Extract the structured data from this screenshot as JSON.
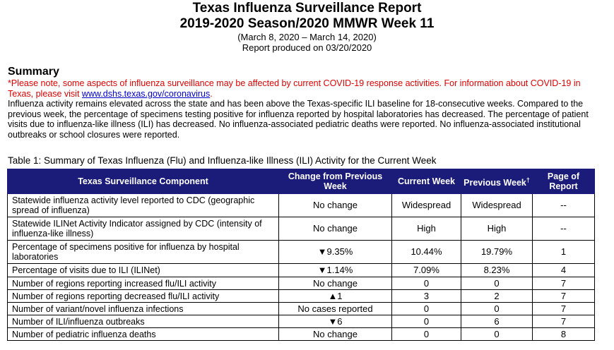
{
  "header": {
    "title_line1": "Texas Influenza Surveillance Report",
    "title_line2": "2019-2020 Season/2020 MMWR Week 11",
    "date_range": "(March 8, 2020 – March 14, 2020)",
    "produced": "Report produced on 03/20/2020"
  },
  "summary": {
    "heading": "Summary",
    "covid_note_before_link": "*Please note, some aspects of influenza surveillance may be affected by current COVID-19 response activities. For information about COVID-19 in Texas, please visit ",
    "covid_link": "www.dshs.texas.gov/coronavirus",
    "covid_note_after_link": ".",
    "body": "Influenza activity remains elevated across the state and has been above the Texas-specific ILI baseline for 18-consecutive weeks. Compared to the previous week, the percentage of specimens testing positive for influenza reported by hospital laboratories has decreased. The percentage of patient visits due to influenza-like illness (ILI) has decreased. No influenza-associated pediatric deaths were reported. No influenza-associated institutional outbreaks or school closures were reported."
  },
  "table": {
    "caption": "Table 1: Summary of Texas Influenza (Flu) and Influenza-like Illness (ILI) Activity for the Current Week",
    "headers": {
      "component": "Texas Surveillance Component",
      "change": "Change from Previous Week",
      "current": "Current Week",
      "previous": "Previous Week",
      "previous_sup": "†",
      "page": "Page of Report"
    },
    "rows": [
      {
        "component": "Statewide influenza activity level reported to CDC (geographic spread of influenza)",
        "change": "No change",
        "current": "Widespread",
        "previous": "Widespread",
        "page": "--"
      },
      {
        "component": "Statewide ILINet Activity Indicator assigned by CDC (intensity of influenza-like illness)",
        "change": "No change",
        "current": "High",
        "previous": "High",
        "page": "--"
      },
      {
        "component": "Percentage of specimens positive for influenza by hospital laboratories",
        "change": "▼9.35%",
        "current": "10.44%",
        "previous": "19.79%",
        "page": "1"
      },
      {
        "component": "Percentage of visits due to ILI (ILINet)",
        "change": "▼1.14%",
        "current": "7.09%",
        "previous": "8.23%",
        "page": "4"
      },
      {
        "component": "Number of regions reporting increased flu/ILI activity",
        "change": "No change",
        "current": "0",
        "previous": "0",
        "page": "7"
      },
      {
        "component": "Number of regions reporting decreased flu/ILI activity",
        "change": "▲1",
        "current": "3",
        "previous": "2",
        "page": "7"
      },
      {
        "component": "Number of variant/novel influenza infections",
        "change": "No cases reported",
        "current": "0",
        "previous": "0",
        "page": "7"
      },
      {
        "component": "Number of ILI/influenza outbreaks",
        "change": "▼6",
        "current": "0",
        "previous": "6",
        "page": "7"
      },
      {
        "component": "Number of pediatric influenza deaths",
        "change": "No change",
        "current": "0",
        "previous": "0",
        "page": "8"
      }
    ]
  }
}
